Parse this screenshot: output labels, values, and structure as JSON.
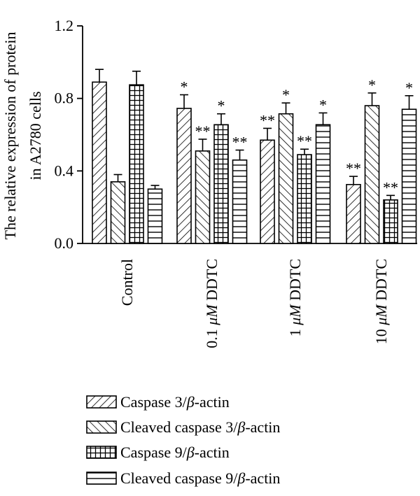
{
  "chart_data": {
    "type": "bar",
    "ylabel": [
      "The relative expression of protein",
      "in A2780 cells"
    ],
    "ylim": [
      0,
      1.2
    ],
    "yticks": [
      "0.0",
      "0.4",
      "0.8",
      "1.2"
    ],
    "ytick_values": [
      0,
      0.4,
      0.8,
      1.2
    ],
    "categories": [
      "Control",
      "0.1 μM DDTC",
      "1 μM DDTC",
      "10 μM DDTC"
    ],
    "categories_parts": [
      [
        "Control",
        "",
        ""
      ],
      [
        "0.1 ",
        "μM",
        " DDTC"
      ],
      [
        "1 ",
        "μM",
        " DDTC"
      ],
      [
        "10 ",
        "μM",
        " DDTC"
      ]
    ],
    "legend_position": "bottom",
    "series": [
      {
        "name": "Caspase 3/β-actin",
        "name_parts": [
          "Caspase 3/",
          "β",
          "-actin"
        ],
        "pattern": "diagonal-right",
        "values": [
          0.89,
          0.745,
          0.57,
          0.325
        ],
        "errors": [
          0.07,
          0.075,
          0.065,
          0.045
        ],
        "significance": [
          "",
          "*",
          "**",
          "**"
        ]
      },
      {
        "name": "Cleaved caspase 3/β-actin",
        "name_parts": [
          "Cleaved caspase 3/",
          "β",
          "-actin"
        ],
        "pattern": "diagonal-left",
        "values": [
          0.34,
          0.51,
          0.715,
          0.76
        ],
        "errors": [
          0.04,
          0.065,
          0.06,
          0.07
        ],
        "significance": [
          "",
          "**",
          "*",
          "*"
        ]
      },
      {
        "name": "Caspase 9/β-actin",
        "name_parts": [
          "Caspase 9/",
          "β",
          "-actin"
        ],
        "pattern": "grid",
        "values": [
          0.875,
          0.655,
          0.49,
          0.24
        ],
        "errors": [
          0.075,
          0.06,
          0.03,
          0.025
        ],
        "significance": [
          "",
          "*",
          "**",
          "**"
        ]
      },
      {
        "name": "Cleaved caspase 9/β-actin",
        "name_parts": [
          "Cleaved caspase 9/",
          "β",
          "-actin"
        ],
        "pattern": "horizontal",
        "values": [
          0.3,
          0.46,
          0.655,
          0.74
        ],
        "errors": [
          0.02,
          0.055,
          0.065,
          0.075
        ],
        "significance": [
          "",
          "**",
          "*",
          "*"
        ]
      }
    ]
  }
}
